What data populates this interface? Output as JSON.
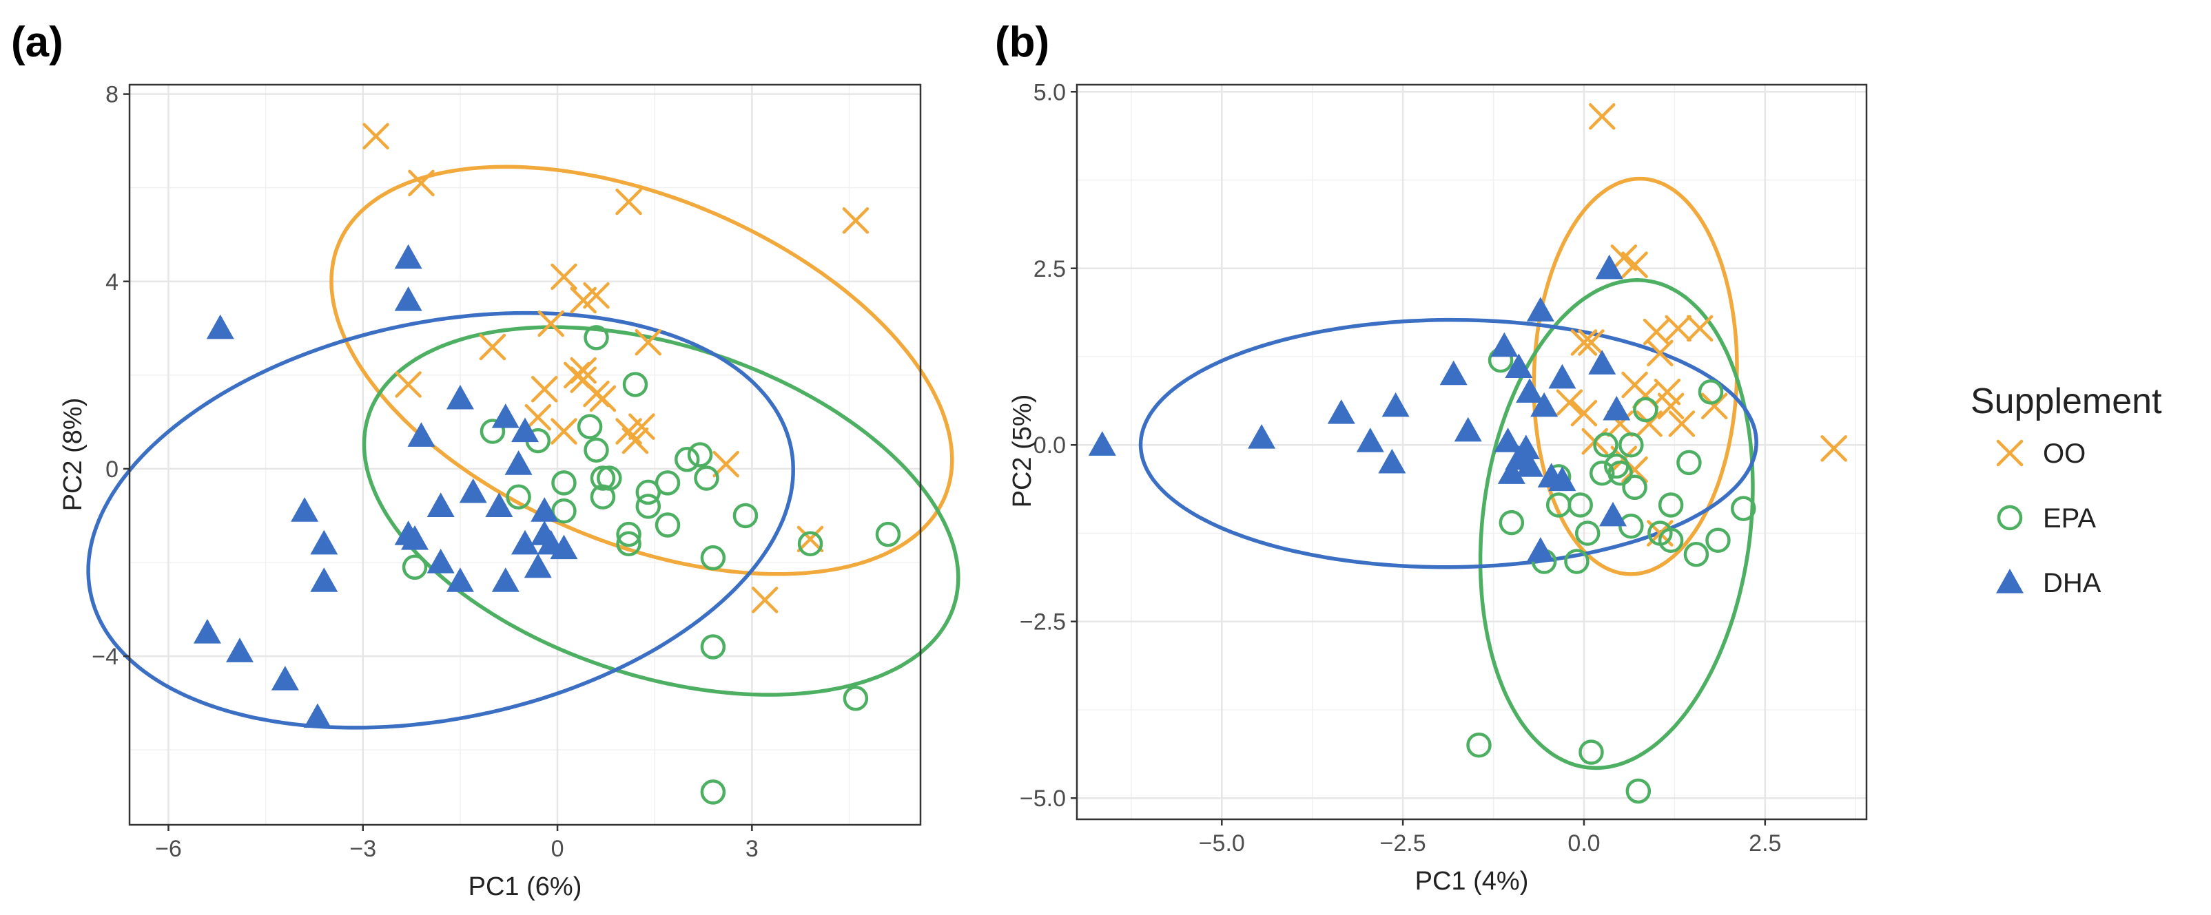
{
  "colors": {
    "OO": "#F2A93B",
    "EPA": "#4DAF62",
    "DHA": "#3A6FC4",
    "grid": "#e6e6e6",
    "frame": "#333333"
  },
  "legend": {
    "title": "Supplement",
    "items": [
      {
        "key": "OO",
        "label": "OO",
        "marker": "cross-icon"
      },
      {
        "key": "EPA",
        "label": "EPA",
        "marker": "circle-icon"
      },
      {
        "key": "DHA",
        "label": "DHA",
        "marker": "triangle-icon"
      }
    ]
  },
  "chart_data": [
    {
      "type": "scatter",
      "panel_label": "(a)",
      "xlabel": "PC1 (6%)",
      "ylabel": "PC2 (8%)",
      "xlim": [
        -6.6,
        5.6
      ],
      "ylim": [
        -7.6,
        8.2
      ],
      "xticks": [
        -6,
        -3,
        0,
        3
      ],
      "xtick_labels": [
        "−6",
        "−3",
        "0",
        "3"
      ],
      "yticks": [
        -4,
        0,
        4,
        8
      ],
      "ytick_labels": [
        "−4",
        "0",
        "4",
        "8"
      ],
      "grid": true,
      "series": [
        {
          "name": "OO",
          "marker": "x",
          "points": [
            [
              -2.8,
              7.1
            ],
            [
              -2.1,
              6.1
            ],
            [
              1.1,
              5.7
            ],
            [
              4.6,
              5.3
            ],
            [
              0.1,
              4.1
            ],
            [
              0.6,
              3.7
            ],
            [
              0.4,
              3.6
            ],
            [
              -0.1,
              3.1
            ],
            [
              -1.0,
              2.6
            ],
            [
              1.4,
              2.7
            ],
            [
              0.3,
              2.0
            ],
            [
              0.4,
              2.1
            ],
            [
              0.4,
              1.9
            ],
            [
              -0.2,
              1.7
            ],
            [
              0.6,
              1.6
            ],
            [
              -2.3,
              1.8
            ],
            [
              -0.3,
              1.1
            ],
            [
              0.7,
              1.5
            ],
            [
              1.1,
              0.8
            ],
            [
              1.3,
              0.9
            ],
            [
              0.1,
              0.8
            ],
            [
              1.2,
              0.6
            ],
            [
              2.6,
              0.1
            ],
            [
              3.9,
              -1.5
            ],
            [
              3.2,
              -2.8
            ]
          ]
        },
        {
          "name": "EPA",
          "marker": "o",
          "points": [
            [
              0.6,
              2.8
            ],
            [
              1.2,
              1.8
            ],
            [
              0.5,
              0.9
            ],
            [
              -1.0,
              0.8
            ],
            [
              -0.3,
              0.6
            ],
            [
              0.6,
              0.4
            ],
            [
              2.0,
              0.2
            ],
            [
              2.2,
              0.3
            ],
            [
              2.3,
              -0.2
            ],
            [
              0.1,
              -0.3
            ],
            [
              0.7,
              -0.2
            ],
            [
              0.8,
              -0.2
            ],
            [
              1.4,
              -0.5
            ],
            [
              1.4,
              -0.8
            ],
            [
              1.7,
              -0.3
            ],
            [
              -0.6,
              -0.6
            ],
            [
              0.7,
              -0.6
            ],
            [
              0.1,
              -0.9
            ],
            [
              1.1,
              -1.4
            ],
            [
              1.1,
              -1.6
            ],
            [
              1.7,
              -1.2
            ],
            [
              2.9,
              -1.0
            ],
            [
              3.9,
              -1.6
            ],
            [
              5.1,
              -1.4
            ],
            [
              -2.2,
              -2.1
            ],
            [
              2.4,
              -1.9
            ],
            [
              2.4,
              -3.8
            ],
            [
              4.6,
              -4.9
            ],
            [
              2.4,
              -6.9
            ]
          ]
        },
        {
          "name": "DHA",
          "marker": "^",
          "points": [
            [
              -5.2,
              3.0
            ],
            [
              -2.3,
              4.5
            ],
            [
              -2.3,
              3.6
            ],
            [
              -2.1,
              0.7
            ],
            [
              -1.5,
              1.5
            ],
            [
              -0.8,
              1.1
            ],
            [
              -0.5,
              0.8
            ],
            [
              -0.6,
              0.1
            ],
            [
              -1.3,
              -0.5
            ],
            [
              -0.9,
              -0.8
            ],
            [
              -0.2,
              -0.9
            ],
            [
              -1.8,
              -0.8
            ],
            [
              -3.9,
              -0.9
            ],
            [
              -3.6,
              -1.6
            ],
            [
              -2.3,
              -1.4
            ],
            [
              -2.2,
              -1.5
            ],
            [
              -0.5,
              -1.6
            ],
            [
              -0.2,
              -1.4
            ],
            [
              -0.1,
              -1.6
            ],
            [
              0.1,
              -1.7
            ],
            [
              -1.8,
              -2.0
            ],
            [
              -1.5,
              -2.4
            ],
            [
              -0.8,
              -2.4
            ],
            [
              -0.3,
              -2.1
            ],
            [
              -3.6,
              -2.4
            ],
            [
              -5.4,
              -3.5
            ],
            [
              -4.9,
              -3.9
            ],
            [
              -4.2,
              -4.5
            ],
            [
              -3.7,
              -5.3
            ]
          ]
        }
      ],
      "ellipses": [
        {
          "name": "OO",
          "cx": 1.3,
          "cy": 2.1,
          "a": 5.5,
          "b": 3.4,
          "angle_deg": -38.8
        },
        {
          "name": "EPA",
          "cx": 1.6,
          "cy": -0.9,
          "a": 5.03,
          "b": 3.33,
          "angle_deg": -33.4
        },
        {
          "name": "DHA",
          "cx": -1.8,
          "cy": -1.1,
          "a": 5.68,
          "b": 4.11,
          "angle_deg": 24.8
        }
      ]
    },
    {
      "type": "scatter",
      "panel_label": "(b)",
      "xlabel": "PC1 (4%)",
      "ylabel": "PC2 (5%)",
      "xlim": [
        -7.0,
        3.9
      ],
      "ylim": [
        -5.3,
        5.1
      ],
      "xticks": [
        -5,
        -2.5,
        0,
        2.5
      ],
      "xtick_labels": [
        "−5.0",
        "−2.5",
        "0.0",
        "2.5"
      ],
      "yticks": [
        -5,
        -2.5,
        0,
        2.5,
        5
      ],
      "ytick_labels": [
        "−5.0",
        "−2.5",
        "0.0",
        "2.5",
        "5.0"
      ],
      "grid": true,
      "series": [
        {
          "name": "OO",
          "marker": "x",
          "points": [
            [
              0.25,
              4.65
            ],
            [
              0.55,
              2.65
            ],
            [
              0.7,
              2.55
            ],
            [
              1.0,
              1.6
            ],
            [
              1.3,
              1.65
            ],
            [
              1.6,
              1.65
            ],
            [
              0.0,
              1.45
            ],
            [
              0.1,
              1.45
            ],
            [
              1.05,
              1.3
            ],
            [
              0.7,
              0.85
            ],
            [
              0.85,
              0.7
            ],
            [
              1.15,
              0.75
            ],
            [
              1.2,
              0.55
            ],
            [
              1.8,
              0.55
            ],
            [
              0.0,
              0.45
            ],
            [
              -0.2,
              0.6
            ],
            [
              0.5,
              0.3
            ],
            [
              0.9,
              0.3
            ],
            [
              0.15,
              0.05
            ],
            [
              1.35,
              0.3
            ],
            [
              0.55,
              -0.2
            ],
            [
              0.7,
              -0.35
            ],
            [
              1.05,
              -1.25
            ],
            [
              3.45,
              -0.05
            ]
          ]
        },
        {
          "name": "EPA",
          "marker": "o",
          "points": [
            [
              -1.15,
              1.2
            ],
            [
              0.85,
              0.5
            ],
            [
              1.75,
              0.75
            ],
            [
              0.3,
              0.0
            ],
            [
              0.65,
              0.0
            ],
            [
              1.45,
              -0.25
            ],
            [
              -0.35,
              -0.45
            ],
            [
              0.25,
              -0.4
            ],
            [
              0.45,
              -0.3
            ],
            [
              0.5,
              -0.4
            ],
            [
              -0.35,
              -0.85
            ],
            [
              -0.05,
              -0.85
            ],
            [
              0.7,
              -0.6
            ],
            [
              1.2,
              -0.85
            ],
            [
              2.2,
              -0.9
            ],
            [
              -1.0,
              -1.1
            ],
            [
              0.05,
              -1.25
            ],
            [
              0.65,
              -1.15
            ],
            [
              1.05,
              -1.25
            ],
            [
              1.2,
              -1.35
            ],
            [
              1.85,
              -1.35
            ],
            [
              -0.55,
              -1.65
            ],
            [
              -0.1,
              -1.65
            ],
            [
              1.55,
              -1.55
            ],
            [
              -1.45,
              -4.25
            ],
            [
              0.1,
              -4.35
            ],
            [
              0.75,
              -4.9
            ]
          ]
        },
        {
          "name": "DHA",
          "marker": "^",
          "points": [
            [
              -6.65,
              0.0
            ],
            [
              -4.45,
              0.1
            ],
            [
              -3.35,
              0.45
            ],
            [
              -2.95,
              0.05
            ],
            [
              -2.6,
              0.55
            ],
            [
              -2.65,
              -0.25
            ],
            [
              -1.8,
              1.0
            ],
            [
              -1.6,
              0.2
            ],
            [
              -1.1,
              1.4
            ],
            [
              -0.9,
              1.1
            ],
            [
              -0.75,
              0.75
            ],
            [
              -0.55,
              0.55
            ],
            [
              -0.3,
              0.95
            ],
            [
              -0.6,
              1.9
            ],
            [
              0.35,
              2.5
            ],
            [
              0.25,
              1.15
            ],
            [
              0.45,
              0.5
            ],
            [
              -1.05,
              0.05
            ],
            [
              -0.9,
              -0.2
            ],
            [
              -0.75,
              -0.3
            ],
            [
              -1.0,
              -0.4
            ],
            [
              -0.45,
              -0.45
            ],
            [
              -0.3,
              -0.5
            ],
            [
              -0.6,
              -1.5
            ],
            [
              0.4,
              -1.0
            ],
            [
              -0.8,
              -0.05
            ]
          ]
        }
      ],
      "ellipses": [
        {
          "name": "OO",
          "cx": 0.71,
          "cy": 0.97,
          "a": 2.8,
          "b": 1.4,
          "angle_deg": 88.3
        },
        {
          "name": "EPA",
          "cx": 0.45,
          "cy": -1.12,
          "a": 3.47,
          "b": 1.85,
          "angle_deg": 83.4
        },
        {
          "name": "DHA",
          "cx": -1.87,
          "cy": 0.02,
          "a": 4.25,
          "b": 1.75,
          "angle_deg": 0.3
        }
      ]
    }
  ]
}
